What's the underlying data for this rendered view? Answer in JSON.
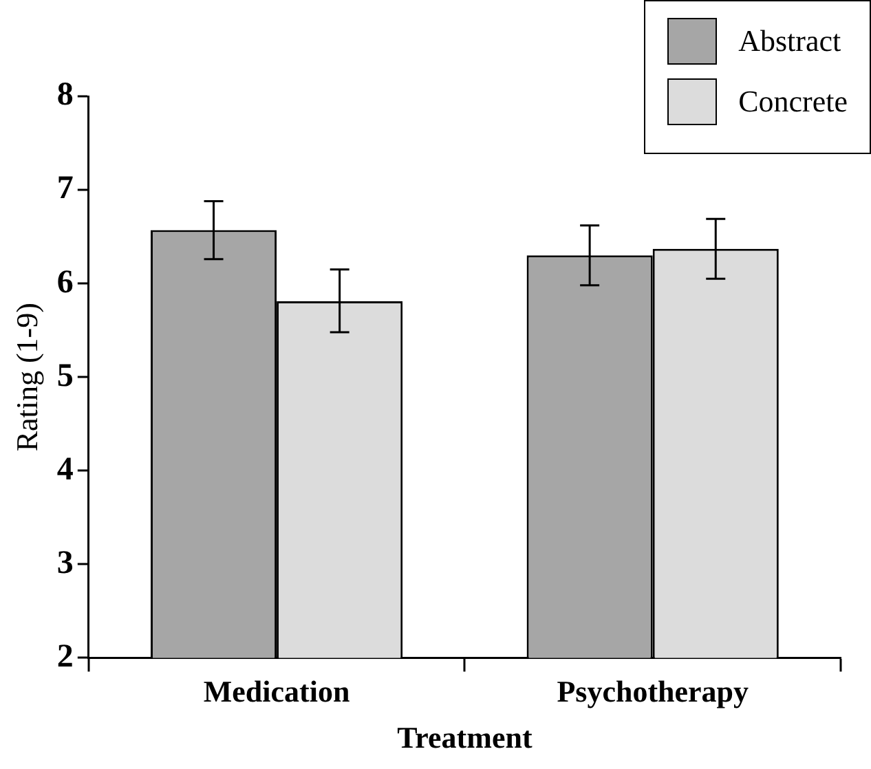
{
  "chart_data": {
    "type": "bar",
    "xlabel": "Treatment",
    "ylabel": "Rating (1-9)",
    "categories": [
      "Medication",
      "Psychotherapy"
    ],
    "series": [
      {
        "name": "Abstract",
        "color": "#a6a6a6",
        "values": [
          6.57,
          6.3
        ],
        "errors": [
          [
            6.26,
            6.88
          ],
          [
            5.98,
            6.62
          ]
        ]
      },
      {
        "name": "Concrete",
        "color": "#dcdcdc",
        "values": [
          5.81,
          6.37
        ],
        "errors": [
          [
            5.48,
            6.15
          ],
          [
            6.05,
            6.69
          ]
        ]
      }
    ],
    "ylim": [
      2,
      8
    ],
    "yticks": [
      2,
      3,
      4,
      5,
      6,
      7,
      8
    ],
    "grid": false,
    "legend": "top right"
  }
}
